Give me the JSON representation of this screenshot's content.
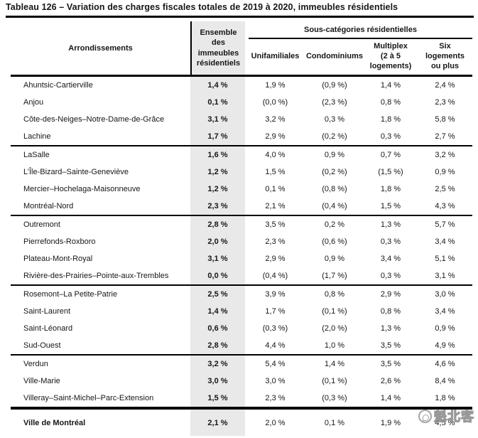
{
  "title": "Tableau 126 – Variation des charges fiscales totales de 2019 à 2020, immeubles résidentiels",
  "colors": {
    "column_highlight": "#e9e9e9",
    "rule_line": "#000000",
    "watermark_gray": "#8f8f8f"
  },
  "table": {
    "columns": {
      "arrondissements": "Arrondissements",
      "ensemble": "Ensemble\ndes\nimmeubles\nrésidentiels",
      "group": "Sous-catégories résidentielles",
      "sub": [
        "Unifamiliales",
        "Condominiums",
        "Multiplex\n(2 à 5\nlogements)",
        "Six\nlogements\nou plus"
      ]
    },
    "groups": [
      {
        "rows": [
          {
            "name": "Ahuntsic-Cartierville",
            "ensemble": "1,4 %",
            "values": [
              "1,9 %",
              "(0,9 %)",
              "1,4 %",
              "2,4 %"
            ]
          },
          {
            "name": "Anjou",
            "ensemble": "0,1 %",
            "values": [
              "(0,0 %)",
              "(2,3 %)",
              "0,8 %",
              "2,3 %"
            ]
          },
          {
            "name": "Côte-des-Neiges–Notre-Dame-de-Grâce",
            "ensemble": "3,1 %",
            "values": [
              "3,2 %",
              "0,3 %",
              "1,8 %",
              "5,8 %"
            ]
          },
          {
            "name": "Lachine",
            "ensemble": "1,7 %",
            "values": [
              "2,9 %",
              "(0,2 %)",
              "0,3 %",
              "2,7 %"
            ]
          }
        ]
      },
      {
        "rows": [
          {
            "name": "LaSalle",
            "ensemble": "1,6 %",
            "values": [
              "4,0 %",
              "0,9 %",
              "0,7 %",
              "3,2 %"
            ]
          },
          {
            "name": "L’Île-Bizard–Sainte-Geneviève",
            "ensemble": "1,2 %",
            "values": [
              "1,5 %",
              "(0,2 %)",
              "(1,5 %)",
              "0,9 %"
            ]
          },
          {
            "name": "Mercier–Hochelaga-Maisonneuve",
            "ensemble": "1,2 %",
            "values": [
              "0,1 %",
              "(0,8 %)",
              "1,8 %",
              "2,5 %"
            ]
          },
          {
            "name": "Montréal-Nord",
            "ensemble": "2,3 %",
            "values": [
              "2,1 %",
              "(0,4 %)",
              "1,5 %",
              "4,3 %"
            ]
          }
        ]
      },
      {
        "rows": [
          {
            "name": "Outremont",
            "ensemble": "2,8 %",
            "values": [
              "3,5 %",
              "0,2 %",
              "1,3 %",
              "5,7 %"
            ]
          },
          {
            "name": "Pierrefonds-Roxboro",
            "ensemble": "2,0 %",
            "values": [
              "2,3 %",
              "(0,6 %)",
              "0,3 %",
              "3,4 %"
            ]
          },
          {
            "name": "Plateau-Mont-Royal",
            "ensemble": "3,1 %",
            "values": [
              "2,9 %",
              "0,9 %",
              "3,4 %",
              "5,1 %"
            ]
          },
          {
            "name": "Rivière-des-Prairies–Pointe-aux-Trembles",
            "ensemble": "0,0 %",
            "values": [
              "(0,4 %)",
              "(1,7 %)",
              "0,3 %",
              "3,1 %"
            ]
          }
        ]
      },
      {
        "rows": [
          {
            "name": "Rosemont–La Petite-Patrie",
            "ensemble": "2,5 %",
            "values": [
              "3,9 %",
              "0,8 %",
              "2,9 %",
              "3,0 %"
            ]
          },
          {
            "name": "Saint-Laurent",
            "ensemble": "1,4 %",
            "values": [
              "1,7 %",
              "(0,1 %)",
              "0,8 %",
              "3,4 %"
            ]
          },
          {
            "name": "Saint-Léonard",
            "ensemble": "0,6 %",
            "values": [
              "(0,3 %)",
              "(2,0 %)",
              "1,3 %",
              "0,9 %"
            ]
          },
          {
            "name": "Sud-Ouest",
            "ensemble": "2,8 %",
            "values": [
              "4,4 %",
              "1,0 %",
              "3,5 %",
              "4,9 %"
            ]
          }
        ]
      },
      {
        "rows": [
          {
            "name": "Verdun",
            "ensemble": "3,2 %",
            "values": [
              "5,4 %",
              "1,4 %",
              "3,5 %",
              "4,6 %"
            ]
          },
          {
            "name": "Ville-Marie",
            "ensemble": "3,0 %",
            "values": [
              "3,0 %",
              "(0,1 %)",
              "2,6 %",
              "8,4 %"
            ]
          },
          {
            "name": "Villeray–Saint-Michel–Parc-Extension",
            "ensemble": "1,5 %",
            "values": [
              "2,3 %",
              "(0,3 %)",
              "1,4 %",
              "1,8 %"
            ]
          }
        ]
      }
    ],
    "total": {
      "name": "Ville de Montréal",
      "ensemble": "2,1 %",
      "values": [
        "2,0 %",
        "0,1 %",
        "1,9 %",
        "4,5 %"
      ]
    }
  },
  "watermark": {
    "text": "魁北客"
  }
}
